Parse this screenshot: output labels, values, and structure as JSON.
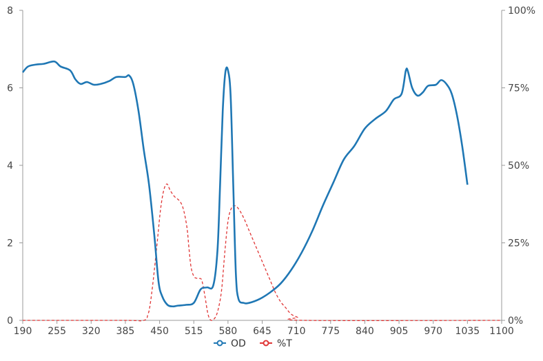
{
  "chart_data": {
    "type": "line",
    "title": "",
    "xlabel": "",
    "ylabel": "",
    "y2label": "",
    "xlim": [
      190,
      1100
    ],
    "ylim": [
      0,
      8
    ],
    "y2lim": [
      0,
      100
    ],
    "grid": false,
    "legend_position": "bottom-center",
    "x_ticks": [
      "190",
      "255",
      "320",
      "385",
      "450",
      "515",
      "580",
      "645",
      "710",
      "775",
      "840",
      "905",
      "970",
      "1035",
      "1100"
    ],
    "y_ticks": [
      "0",
      "2",
      "4",
      "6",
      "8"
    ],
    "y2_ticks": [
      "0%",
      "25%",
      "50%",
      "75%",
      "100%"
    ],
    "series": [
      {
        "name": "OD",
        "axis": "left",
        "color": "#1f77b4",
        "style": "solid",
        "points": [
          [
            190,
            6.4
          ],
          [
            200,
            6.55
          ],
          [
            215,
            6.6
          ],
          [
            230,
            6.62
          ],
          [
            250,
            6.68
          ],
          [
            262,
            6.55
          ],
          [
            280,
            6.45
          ],
          [
            290,
            6.22
          ],
          [
            300,
            6.1
          ],
          [
            312,
            6.15
          ],
          [
            325,
            6.08
          ],
          [
            338,
            6.1
          ],
          [
            355,
            6.18
          ],
          [
            368,
            6.28
          ],
          [
            385,
            6.28
          ],
          [
            392,
            6.32
          ],
          [
            400,
            6.1
          ],
          [
            410,
            5.4
          ],
          [
            420,
            4.4
          ],
          [
            430,
            3.5
          ],
          [
            440,
            2.2
          ],
          [
            448,
            1.0
          ],
          [
            455,
            0.62
          ],
          [
            465,
            0.4
          ],
          [
            475,
            0.36
          ],
          [
            485,
            0.38
          ],
          [
            500,
            0.4
          ],
          [
            515,
            0.45
          ],
          [
            528,
            0.8
          ],
          [
            540,
            0.85
          ],
          [
            552,
            0.9
          ],
          [
            560,
            1.8
          ],
          [
            565,
            3.5
          ],
          [
            570,
            5.4
          ],
          [
            575,
            6.4
          ],
          [
            580,
            6.45
          ],
          [
            585,
            5.8
          ],
          [
            590,
            3.5
          ],
          [
            595,
            1.2
          ],
          [
            600,
            0.55
          ],
          [
            610,
            0.45
          ],
          [
            620,
            0.45
          ],
          [
            640,
            0.55
          ],
          [
            660,
            0.72
          ],
          [
            680,
            0.95
          ],
          [
            700,
            1.3
          ],
          [
            720,
            1.75
          ],
          [
            740,
            2.3
          ],
          [
            760,
            2.95
          ],
          [
            780,
            3.55
          ],
          [
            800,
            4.15
          ],
          [
            820,
            4.5
          ],
          [
            840,
            4.95
          ],
          [
            860,
            5.2
          ],
          [
            880,
            5.4
          ],
          [
            895,
            5.7
          ],
          [
            910,
            5.85
          ],
          [
            918,
            6.45
          ],
          [
            922,
            6.42
          ],
          [
            930,
            6.0
          ],
          [
            940,
            5.8
          ],
          [
            950,
            5.88
          ],
          [
            960,
            6.05
          ],
          [
            975,
            6.08
          ],
          [
            985,
            6.2
          ],
          [
            995,
            6.1
          ],
          [
            1005,
            5.85
          ],
          [
            1015,
            5.3
          ],
          [
            1025,
            4.5
          ],
          [
            1035,
            3.5
          ]
        ]
      },
      {
        "name": "%T",
        "axis": "right",
        "color": "#e03535",
        "style": "dashed",
        "points": [
          [
            190,
            0
          ],
          [
            380,
            0
          ],
          [
            420,
            0
          ],
          [
            428,
            2
          ],
          [
            432,
            5
          ],
          [
            438,
            13
          ],
          [
            446,
            26
          ],
          [
            452,
            36
          ],
          [
            458,
            42
          ],
          [
            464,
            44
          ],
          [
            470,
            42
          ],
          [
            478,
            40
          ],
          [
            488,
            38.5
          ],
          [
            495,
            36
          ],
          [
            502,
            30
          ],
          [
            506,
            23
          ],
          [
            510,
            17
          ],
          [
            516,
            14
          ],
          [
            524,
            13.5
          ],
          [
            530,
            13
          ],
          [
            536,
            8
          ],
          [
            542,
            2
          ],
          [
            548,
            0
          ],
          [
            556,
            1
          ],
          [
            562,
            4
          ],
          [
            568,
            10
          ],
          [
            574,
            22
          ],
          [
            580,
            32
          ],
          [
            586,
            36
          ],
          [
            592,
            37
          ],
          [
            600,
            36
          ],
          [
            610,
            33
          ],
          [
            620,
            29
          ],
          [
            630,
            25
          ],
          [
            640,
            21
          ],
          [
            650,
            17
          ],
          [
            660,
            13
          ],
          [
            670,
            9
          ],
          [
            680,
            6
          ],
          [
            690,
            4
          ],
          [
            700,
            2
          ],
          [
            712,
            1
          ],
          [
            725,
            0
          ],
          [
            1100,
            0
          ]
        ]
      }
    ]
  }
}
